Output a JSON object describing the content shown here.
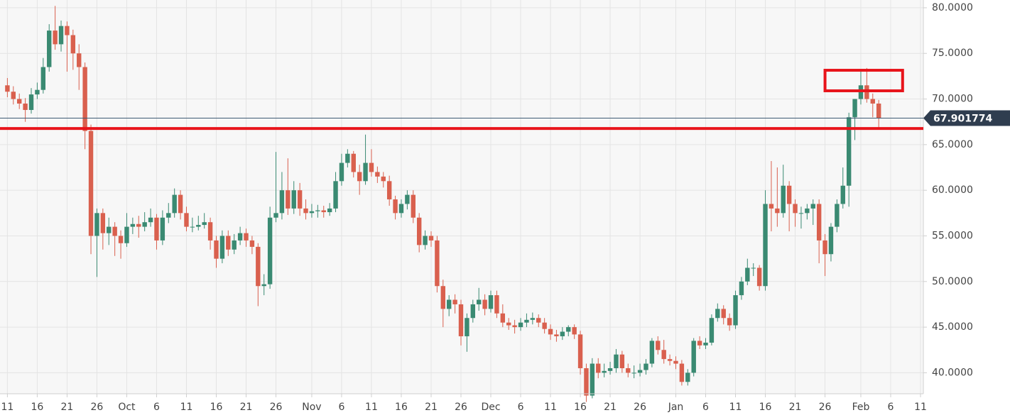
{
  "chart_data": {
    "type": "candlestick",
    "current_price": 67.901774,
    "up_color": "#3a8a72",
    "down_color": "#d9604e",
    "grid": true,
    "ylim": [
      37.7,
      80.85
    ],
    "yticks": [
      {
        "value": 40,
        "label": "40.0000"
      },
      {
        "value": 45,
        "label": "45.0000"
      },
      {
        "value": 50,
        "label": "50.0000"
      },
      {
        "value": 55,
        "label": "55.0000"
      },
      {
        "value": 60,
        "label": "60.0000"
      },
      {
        "value": 65,
        "label": "65.0000"
      },
      {
        "value": 70,
        "label": "70.0000"
      },
      {
        "value": 75,
        "label": "75.0000"
      },
      {
        "value": 80,
        "label": "80.0000"
      }
    ],
    "xlim": [
      "Sep 10",
      "Feb 11"
    ],
    "xticks": [
      {
        "value": "Sep 11",
        "label": "11"
      },
      {
        "value": "Sep 16",
        "label": "16"
      },
      {
        "value": "Sep 21",
        "label": "21"
      },
      {
        "value": "Sep 26",
        "label": "26"
      },
      {
        "value": "Oct 1",
        "label": "Oct"
      },
      {
        "value": "Oct 6",
        "label": "6"
      },
      {
        "value": "Oct 11",
        "label": "11"
      },
      {
        "value": "Oct 16",
        "label": "16"
      },
      {
        "value": "Oct 21",
        "label": "21"
      },
      {
        "value": "Oct 26",
        "label": "26"
      },
      {
        "value": "Nov 1",
        "label": "Nov"
      },
      {
        "value": "Nov 6",
        "label": "6"
      },
      {
        "value": "Nov 11",
        "label": "11"
      },
      {
        "value": "Nov 16",
        "label": "16"
      },
      {
        "value": "Nov 21",
        "label": "21"
      },
      {
        "value": "Nov 26",
        "label": "26"
      },
      {
        "value": "Dec 1",
        "label": "Dec"
      },
      {
        "value": "Dec 6",
        "label": "6"
      },
      {
        "value": "Dec 11",
        "label": "11"
      },
      {
        "value": "Dec 16",
        "label": "16"
      },
      {
        "value": "Dec 21",
        "label": "21"
      },
      {
        "value": "Dec 26",
        "label": "26"
      },
      {
        "value": "Jan 1",
        "label": "Jan"
      },
      {
        "value": "Jan 6",
        "label": "6"
      },
      {
        "value": "Jan 11",
        "label": "11"
      },
      {
        "value": "Jan 16",
        "label": "16"
      },
      {
        "value": "Jan 21",
        "label": "21"
      },
      {
        "value": "Jan 26",
        "label": "26"
      },
      {
        "value": "Feb 1",
        "label": "Feb"
      },
      {
        "value": "Feb 6",
        "label": "6"
      },
      {
        "value": "Feb 11",
        "label": "11"
      }
    ],
    "annotations": {
      "support_level": 66.77,
      "box": {
        "x": [
          "Jan 26",
          "Feb 8"
        ],
        "y": [
          70.9,
          73.15
        ]
      },
      "color": "#e8141b"
    },
    "x": [
      "Sep 11",
      "Sep 12",
      "Sep 13",
      "Sep 14",
      "Sep 15",
      "Sep 16",
      "Sep 17",
      "Sep 18",
      "Sep 19",
      "Sep 20",
      "Sep 21",
      "Sep 22",
      "Sep 23",
      "Sep 24",
      "Sep 25",
      "Sep 26",
      "Sep 27",
      "Sep 28",
      "Sep 29",
      "Sep 30",
      "Oct 1",
      "Oct 2",
      "Oct 3",
      "Oct 4",
      "Oct 5",
      "Oct 6",
      "Oct 7",
      "Oct 8",
      "Oct 9",
      "Oct 10",
      "Oct 11",
      "Oct 12",
      "Oct 13",
      "Oct 14",
      "Oct 15",
      "Oct 16",
      "Oct 17",
      "Oct 18",
      "Oct 19",
      "Oct 20",
      "Oct 21",
      "Oct 22",
      "Oct 23",
      "Oct 24",
      "Oct 25",
      "Oct 26",
      "Oct 27",
      "Oct 28",
      "Oct 29",
      "Oct 30",
      "Oct 31",
      "Nov 1",
      "Nov 2",
      "Nov 3",
      "Nov 4",
      "Nov 5",
      "Nov 6",
      "Nov 7",
      "Nov 8",
      "Nov 9",
      "Nov 10",
      "Nov 11",
      "Nov 12",
      "Nov 13",
      "Nov 14",
      "Nov 15",
      "Nov 16",
      "Nov 17",
      "Nov 18",
      "Nov 19",
      "Nov 20",
      "Nov 21",
      "Nov 22",
      "Nov 23",
      "Nov 24",
      "Nov 25",
      "Nov 26",
      "Nov 27",
      "Nov 28",
      "Nov 29",
      "Nov 30",
      "Dec 1",
      "Dec 2",
      "Dec 3",
      "Dec 4",
      "Dec 5",
      "Dec 6",
      "Dec 7",
      "Dec 8",
      "Dec 9",
      "Dec 10",
      "Dec 11",
      "Dec 12",
      "Dec 13",
      "Dec 14",
      "Dec 15",
      "Dec 16",
      "Dec 17",
      "Dec 18",
      "Dec 19",
      "Dec 20",
      "Dec 21",
      "Dec 22",
      "Dec 23",
      "Dec 24",
      "Dec 25",
      "Dec 26",
      "Dec 27",
      "Dec 28",
      "Dec 29",
      "Dec 30",
      "Dec 31",
      "Jan 1",
      "Jan 2",
      "Jan 3",
      "Jan 4",
      "Jan 5",
      "Jan 6",
      "Jan 7",
      "Jan 8",
      "Jan 9",
      "Jan 10",
      "Jan 11",
      "Jan 12",
      "Jan 13",
      "Jan 14",
      "Jan 15",
      "Jan 16",
      "Jan 17",
      "Jan 18",
      "Jan 19",
      "Jan 20",
      "Jan 21",
      "Jan 22",
      "Jan 23",
      "Jan 24",
      "Jan 25",
      "Jan 26",
      "Jan 27",
      "Jan 28",
      "Jan 29",
      "Jan 30",
      "Jan 31",
      "Feb 1",
      "Feb 2",
      "Feb 3",
      "Feb 4"
    ],
    "ohlc": [
      [
        71.5,
        72.3,
        70.2,
        70.8
      ],
      [
        70.8,
        71.4,
        69.4,
        70.0
      ],
      [
        70.0,
        70.6,
        68.9,
        69.5
      ],
      [
        69.5,
        70.1,
        67.5,
        68.8
      ],
      [
        68.8,
        71.2,
        68.4,
        70.5
      ],
      [
        70.5,
        71.8,
        70.0,
        71.0
      ],
      [
        71.0,
        74.5,
        70.6,
        73.5
      ],
      [
        73.5,
        78.2,
        73.0,
        77.5
      ],
      [
        77.5,
        80.2,
        75.4,
        76.0
      ],
      [
        76.0,
        78.6,
        75.2,
        78.0
      ],
      [
        78.0,
        78.5,
        73.0,
        77.0
      ],
      [
        77.0,
        77.6,
        73.2,
        75.0
      ],
      [
        75.0,
        76.0,
        71.0,
        73.5
      ],
      [
        73.5,
        74.0,
        64.5,
        66.5
      ],
      [
        66.5,
        67.2,
        53.0,
        55.0
      ],
      [
        55.0,
        58.0,
        50.5,
        57.5
      ],
      [
        57.5,
        58.0,
        53.5,
        55.3
      ],
      [
        55.3,
        57.0,
        54.0,
        56.0
      ],
      [
        56.0,
        56.5,
        52.8,
        55.0
      ],
      [
        55.0,
        55.6,
        52.5,
        54.2
      ],
      [
        54.2,
        57.5,
        53.8,
        56.0
      ],
      [
        56.0,
        57.0,
        55.2,
        56.3
      ],
      [
        56.3,
        57.2,
        54.8,
        56.0
      ],
      [
        56.0,
        57.6,
        55.5,
        56.5
      ],
      [
        56.5,
        58.0,
        56.0,
        57.0
      ],
      [
        57.0,
        57.4,
        53.5,
        54.5
      ],
      [
        54.5,
        57.8,
        54.0,
        57.0
      ],
      [
        57.0,
        58.6,
        56.4,
        57.5
      ],
      [
        57.5,
        60.2,
        57.0,
        59.5
      ],
      [
        59.5,
        60.0,
        56.8,
        57.5
      ],
      [
        57.5,
        58.2,
        55.5,
        56.0
      ],
      [
        56.0,
        57.0,
        55.4,
        56.0
      ],
      [
        56.0,
        57.2,
        55.6,
        56.2
      ],
      [
        56.2,
        57.5,
        55.8,
        56.5
      ],
      [
        56.5,
        57.0,
        53.5,
        54.5
      ],
      [
        54.5,
        55.0,
        51.5,
        52.5
      ],
      [
        52.5,
        55.6,
        52.0,
        55.0
      ],
      [
        55.0,
        55.6,
        52.8,
        53.5
      ],
      [
        53.5,
        55.2,
        53.0,
        54.5
      ],
      [
        54.5,
        56.0,
        54.0,
        55.3
      ],
      [
        55.3,
        55.8,
        53.8,
        54.5
      ],
      [
        54.5,
        55.0,
        53.0,
        53.8
      ],
      [
        53.8,
        54.2,
        47.3,
        49.5
      ],
      [
        49.5,
        50.8,
        48.5,
        49.7
      ],
      [
        49.7,
        58.2,
        49.2,
        57.0
      ],
      [
        57.0,
        64.2,
        56.5,
        57.5
      ],
      [
        57.5,
        62.0,
        56.8,
        60.0
      ],
      [
        60.0,
        63.5,
        57.3,
        58.0
      ],
      [
        58.0,
        61.0,
        57.4,
        60.0
      ],
      [
        60.0,
        60.8,
        57.2,
        58.0
      ],
      [
        58.0,
        59.0,
        56.8,
        57.5
      ],
      [
        57.5,
        58.5,
        57.0,
        57.7
      ],
      [
        57.7,
        58.4,
        57.0,
        57.8
      ],
      [
        57.8,
        58.3,
        57.0,
        57.6
      ],
      [
        57.6,
        58.6,
        57.2,
        58.0
      ],
      [
        58.0,
        62.0,
        57.6,
        61.0
      ],
      [
        61.0,
        64.0,
        60.5,
        63.0
      ],
      [
        63.0,
        64.5,
        62.5,
        64.0
      ],
      [
        64.0,
        64.3,
        61.4,
        62.0
      ],
      [
        62.0,
        62.8,
        59.5,
        61.0
      ],
      [
        61.0,
        66.1,
        60.6,
        63.0
      ],
      [
        63.0,
        64.5,
        61.5,
        62.0
      ],
      [
        62.0,
        62.6,
        60.8,
        61.5
      ],
      [
        61.5,
        62.0,
        60.3,
        61.0
      ],
      [
        61.0,
        61.6,
        58.3,
        59.0
      ],
      [
        59.0,
        59.4,
        56.8,
        57.5
      ],
      [
        57.5,
        59.0,
        57.0,
        58.5
      ],
      [
        58.5,
        60.0,
        57.9,
        59.5
      ],
      [
        59.5,
        60.0,
        56.4,
        57.0
      ],
      [
        57.0,
        57.5,
        53.2,
        54.0
      ],
      [
        54.0,
        55.6,
        53.5,
        55.0
      ],
      [
        55.0,
        55.5,
        53.8,
        54.5
      ],
      [
        54.5,
        55.0,
        48.8,
        49.5
      ],
      [
        49.5,
        50.2,
        45.0,
        47.0
      ],
      [
        47.0,
        48.5,
        46.2,
        48.0
      ],
      [
        48.0,
        48.6,
        46.5,
        47.5
      ],
      [
        47.5,
        48.0,
        43.0,
        44.0
      ],
      [
        44.0,
        46.5,
        42.3,
        46.0
      ],
      [
        46.0,
        48.0,
        45.5,
        47.5
      ],
      [
        47.5,
        49.3,
        46.8,
        48.0
      ],
      [
        48.0,
        48.6,
        46.3,
        47.0
      ],
      [
        47.0,
        49.0,
        46.6,
        48.5
      ],
      [
        48.5,
        49.0,
        46.0,
        46.5
      ],
      [
        46.5,
        47.5,
        45.0,
        45.5
      ],
      [
        45.5,
        46.0,
        44.7,
        45.2
      ],
      [
        45.2,
        45.8,
        44.3,
        45.0
      ],
      [
        45.0,
        46.0,
        44.6,
        45.5
      ],
      [
        45.5,
        46.5,
        45.0,
        45.8
      ],
      [
        45.8,
        46.6,
        45.3,
        46.0
      ],
      [
        46.0,
        46.4,
        45.0,
        45.5
      ],
      [
        45.5,
        46.0,
        44.3,
        44.8
      ],
      [
        44.8,
        45.3,
        43.6,
        44.2
      ],
      [
        44.2,
        44.7,
        43.4,
        44.0
      ],
      [
        44.0,
        45.0,
        43.6,
        44.5
      ],
      [
        44.5,
        45.2,
        44.0,
        45.0
      ],
      [
        45.0,
        45.3,
        43.7,
        44.2
      ],
      [
        44.2,
        44.6,
        39.8,
        40.5
      ],
      [
        40.5,
        41.0,
        36.8,
        37.5
      ],
      [
        37.5,
        41.6,
        37.2,
        41.0
      ],
      [
        41.0,
        41.6,
        39.4,
        40.0
      ],
      [
        40.0,
        41.0,
        39.5,
        40.2
      ],
      [
        40.2,
        41.2,
        39.8,
        40.5
      ],
      [
        40.5,
        42.6,
        40.0,
        42.0
      ],
      [
        42.0,
        42.4,
        40.0,
        40.5
      ],
      [
        40.5,
        41.0,
        39.5,
        40.0
      ],
      [
        40.0,
        40.8,
        39.4,
        40.0
      ],
      [
        40.0,
        41.0,
        39.6,
        40.3
      ],
      [
        40.3,
        41.5,
        39.8,
        41.0
      ],
      [
        41.0,
        43.8,
        40.6,
        43.5
      ],
      [
        43.5,
        44.0,
        42.0,
        42.5
      ],
      [
        42.5,
        43.6,
        41.0,
        41.5
      ],
      [
        41.5,
        42.0,
        40.8,
        41.3
      ],
      [
        41.3,
        41.8,
        40.4,
        41.0
      ],
      [
        41.0,
        41.4,
        38.6,
        39.0
      ],
      [
        39.0,
        40.4,
        38.6,
        40.0
      ],
      [
        40.0,
        43.8,
        39.6,
        43.5
      ],
      [
        43.5,
        44.0,
        42.6,
        43.0
      ],
      [
        43.0,
        43.8,
        42.6,
        43.3
      ],
      [
        43.3,
        46.4,
        43.0,
        46.0
      ],
      [
        46.0,
        47.6,
        45.6,
        47.0
      ],
      [
        47.0,
        47.4,
        45.3,
        46.0
      ],
      [
        46.0,
        46.5,
        44.6,
        45.2
      ],
      [
        45.2,
        49.0,
        44.8,
        48.5
      ],
      [
        48.5,
        50.5,
        48.0,
        50.0
      ],
      [
        50.0,
        52.5,
        49.6,
        51.5
      ],
      [
        51.5,
        52.0,
        50.6,
        51.5
      ],
      [
        51.5,
        51.8,
        49.0,
        49.5
      ],
      [
        49.5,
        60.0,
        49.0,
        58.5
      ],
      [
        58.5,
        63.2,
        55.5,
        58.0
      ],
      [
        58.0,
        62.5,
        56.0,
        57.5
      ],
      [
        57.5,
        62.8,
        57.0,
        60.5
      ],
      [
        60.5,
        61.0,
        55.5,
        58.5
      ],
      [
        58.5,
        59.0,
        56.0,
        57.5
      ],
      [
        57.5,
        58.2,
        55.8,
        57.5
      ],
      [
        57.5,
        58.5,
        56.8,
        58.0
      ],
      [
        58.0,
        59.0,
        56.2,
        58.5
      ],
      [
        58.5,
        59.0,
        52.0,
        54.5
      ],
      [
        54.5,
        55.2,
        50.6,
        53.0
      ],
      [
        53.0,
        56.4,
        52.2,
        56.0
      ],
      [
        56.0,
        59.0,
        55.4,
        58.5
      ],
      [
        58.5,
        62.5,
        58.0,
        60.5
      ],
      [
        60.5,
        68.5,
        58.2,
        68.0
      ],
      [
        68.0,
        70.0,
        65.5,
        70.0
      ],
      [
        70.0,
        73.2,
        69.4,
        71.5
      ],
      [
        71.5,
        73.4,
        69.6,
        70.0
      ],
      [
        70.0,
        70.6,
        68.0,
        69.5
      ],
      [
        69.5,
        69.9,
        66.8,
        67.9
      ]
    ]
  }
}
